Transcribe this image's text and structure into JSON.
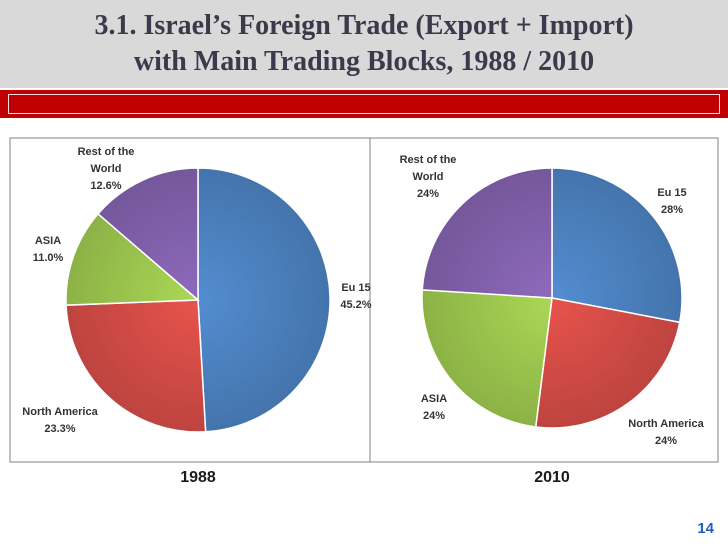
{
  "title_lines": [
    "3.1. Israel’s Foreign Trade (Export + Import)",
    "with Main Trading Blocks, 1988 / 2010"
  ],
  "page_number": "14",
  "colors": {
    "title_bar": "#d9d9d9",
    "band": "#c00000",
    "page_number": "#1f5fbf"
  },
  "chart_data": [
    {
      "type": "pie",
      "title": "1988",
      "slices": [
        {
          "label_lines": [
            "Eu 15"
          ],
          "value_label": "45.2%",
          "value": 45.2,
          "color": "#4a7ebb"
        },
        {
          "label_lines": [
            "North America"
          ],
          "value_label": "23.3%",
          "value": 23.3,
          "color": "#cf4a45"
        },
        {
          "label_lines": [
            "ASIA"
          ],
          "value_label": "11.0%",
          "value": 11.0,
          "color": "#98c14c"
        },
        {
          "label_lines": [
            "Rest of the",
            "World"
          ],
          "value_label": "12.6%",
          "value": 12.6,
          "color": "#7f5fa8"
        }
      ]
    },
    {
      "type": "pie",
      "title": "2010",
      "slices": [
        {
          "label_lines": [
            "Eu 15"
          ],
          "value_label": "28%",
          "value": 28,
          "color": "#4a7ebb"
        },
        {
          "label_lines": [
            "North America"
          ],
          "value_label": "24%",
          "value": 24,
          "color": "#cf4a45"
        },
        {
          "label_lines": [
            "ASIA"
          ],
          "value_label": "24%",
          "value": 24,
          "color": "#98c14c"
        },
        {
          "label_lines": [
            "Rest of the",
            "World"
          ],
          "value_label": "24%",
          "value": 24,
          "color": "#7f5fa8"
        }
      ]
    }
  ]
}
